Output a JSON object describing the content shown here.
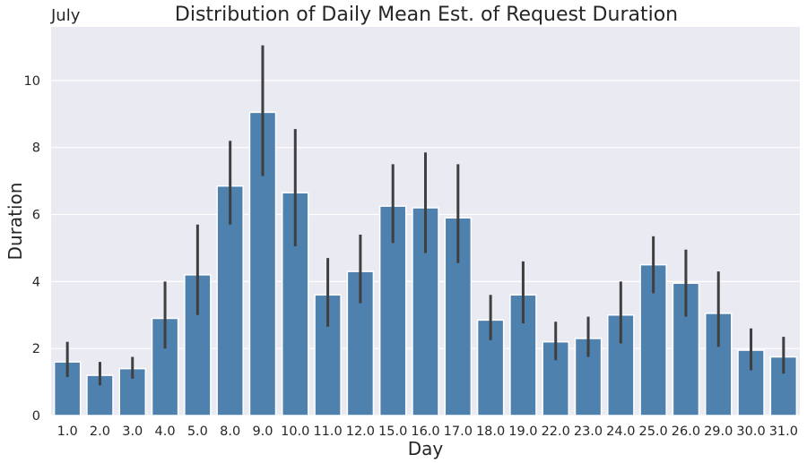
{
  "chart_data": {
    "type": "bar",
    "title": "Distribution of Daily Mean Est. of Request Duration",
    "corner_label": "July",
    "xlabel": "Day",
    "ylabel": "Duration",
    "ylim": [
      0,
      11.6
    ],
    "yticks": [
      0,
      2,
      4,
      6,
      8,
      10
    ],
    "grid": true,
    "bar_color": "#4E81AE",
    "background_color": "#EAEAF2",
    "errorbar_color": "#3F3F3F",
    "categories": [
      "1.0",
      "2.0",
      "3.0",
      "4.0",
      "5.0",
      "8.0",
      "9.0",
      "10.0",
      "11.0",
      "12.0",
      "15.0",
      "16.0",
      "17.0",
      "18.0",
      "19.0",
      "22.0",
      "23.0",
      "24.0",
      "25.0",
      "26.0",
      "29.0",
      "30.0",
      "31.0"
    ],
    "values": [
      1.6,
      1.2,
      1.4,
      2.9,
      4.2,
      6.85,
      9.05,
      6.65,
      3.6,
      4.3,
      6.25,
      6.2,
      5.9,
      2.85,
      3.6,
      2.2,
      2.3,
      3.0,
      4.5,
      3.95,
      3.05,
      1.95,
      1.75
    ],
    "error_low": [
      1.15,
      0.9,
      1.1,
      2.0,
      3.0,
      5.7,
      7.15,
      5.05,
      2.65,
      3.35,
      5.15,
      4.85,
      4.55,
      2.25,
      2.75,
      1.65,
      1.75,
      2.15,
      3.65,
      2.95,
      2.05,
      1.35,
      1.25
    ],
    "error_high": [
      2.2,
      1.6,
      1.75,
      4.0,
      5.7,
      8.2,
      11.05,
      8.55,
      4.7,
      5.4,
      7.5,
      7.85,
      7.5,
      3.6,
      4.6,
      2.8,
      2.95,
      4.0,
      5.35,
      4.95,
      4.3,
      2.6,
      2.35
    ]
  }
}
